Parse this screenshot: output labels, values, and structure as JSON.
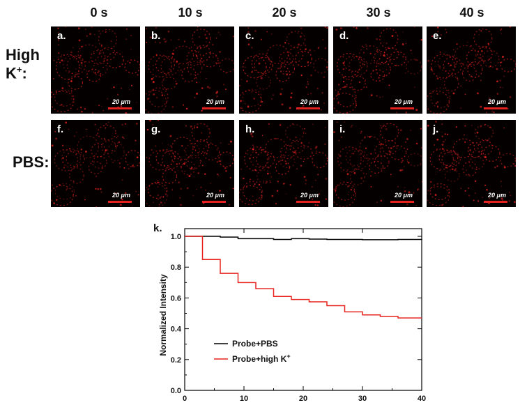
{
  "time_labels": [
    "0 s",
    "10 s",
    "20 s",
    "30 s",
    "40 s"
  ],
  "row_labels": {
    "high": {
      "line1": "High",
      "line2": "K",
      "sup": "+",
      "suffix": ":"
    },
    "pbs": "PBS:"
  },
  "panels": {
    "high": [
      "a.",
      "b.",
      "c.",
      "d.",
      "e."
    ],
    "pbs": [
      "f.",
      "g.",
      "h.",
      "i.",
      "j."
    ]
  },
  "scale_bar_label": "20 μm",
  "chart_data": {
    "type": "line",
    "panel_label": "k.",
    "title": "",
    "xlabel": "",
    "ylabel": "Normalized Intensity",
    "xlim": [
      0,
      40
    ],
    "ylim": [
      0,
      1.05
    ],
    "x_ticks": [
      0,
      10,
      20,
      30,
      40
    ],
    "y_ticks": [
      0.0,
      0.2,
      0.4,
      0.6,
      0.8,
      1.0
    ],
    "y_tick_labels": [
      "0.0",
      "0.2",
      "0.4",
      "0.6",
      "0.8",
      "1.0"
    ],
    "legend_placement": "bottom-left",
    "series": [
      {
        "name": "Probe+PBS",
        "color": "#000000",
        "step": true,
        "x": [
          0,
          3,
          6,
          9,
          12,
          15,
          18,
          21,
          24,
          27,
          30,
          33,
          36,
          40
        ],
        "y": [
          1.0,
          1.0,
          0.995,
          0.985,
          0.985,
          0.98,
          0.985,
          0.982,
          0.98,
          0.98,
          0.978,
          0.978,
          0.98,
          0.978
        ]
      },
      {
        "name": "Probe+high K+",
        "legend_base": "Probe+high K",
        "legend_sup": "+",
        "color": "#e8221e",
        "step": true,
        "x": [
          0,
          3,
          6,
          9,
          12,
          15,
          18,
          21,
          24,
          27,
          30,
          33,
          36,
          40
        ],
        "y": [
          1.0,
          0.85,
          0.76,
          0.7,
          0.66,
          0.61,
          0.59,
          0.575,
          0.55,
          0.51,
          0.49,
          0.48,
          0.47,
          0.47
        ]
      }
    ]
  },
  "colors": {
    "micrograph_background": "#050000",
    "fluorescence": "#e3231f",
    "label_text": "#ffffff"
  }
}
